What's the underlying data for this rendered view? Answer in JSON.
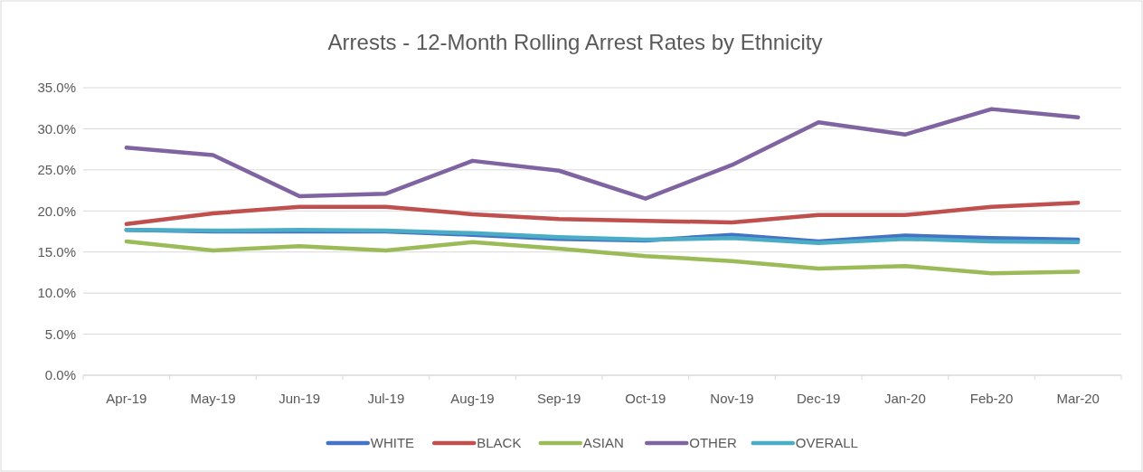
{
  "chart_data": {
    "type": "line",
    "title": "Arrests - 12-Month Rolling Arrest Rates by Ethnicity",
    "categories": [
      "Apr-19",
      "May-19",
      "Jun-19",
      "Jul-19",
      "Aug-19",
      "Sep-19",
      "Oct-19",
      "Nov-19",
      "Dec-19",
      "Jan-20",
      "Feb-20",
      "Mar-20"
    ],
    "series": [
      {
        "name": "WHITE",
        "color": "#4472c4",
        "values": [
          17.7,
          17.5,
          17.5,
          17.5,
          17.1,
          16.6,
          16.4,
          17.1,
          16.3,
          17.0,
          16.7,
          16.5
        ]
      },
      {
        "name": "BLACK",
        "color": "#c0504d",
        "values": [
          18.4,
          19.7,
          20.5,
          20.5,
          19.6,
          19.0,
          18.8,
          18.6,
          19.5,
          19.5,
          20.5,
          21.0
        ]
      },
      {
        "name": "ASIAN",
        "color": "#9bbb59",
        "values": [
          16.3,
          15.2,
          15.7,
          15.2,
          16.2,
          15.4,
          14.5,
          13.9,
          13.0,
          13.3,
          12.4,
          12.6
        ]
      },
      {
        "name": "OTHER",
        "color": "#8064a2",
        "values": [
          27.7,
          26.8,
          21.8,
          22.1,
          26.1,
          24.9,
          21.5,
          25.6,
          30.8,
          29.3,
          32.4,
          31.4
        ]
      },
      {
        "name": "OVERALL",
        "color": "#4bacc6",
        "values": [
          17.7,
          17.6,
          17.7,
          17.6,
          17.3,
          16.8,
          16.5,
          16.7,
          16.1,
          16.6,
          16.3,
          16.2
        ]
      }
    ],
    "ylim": [
      0,
      35
    ],
    "yticks": [
      {
        "value": 0,
        "label": "0.0%"
      },
      {
        "value": 5,
        "label": "5.0%"
      },
      {
        "value": 10,
        "label": "10.0%"
      },
      {
        "value": 15,
        "label": "15.0%"
      },
      {
        "value": 20,
        "label": "20.0%"
      },
      {
        "value": 25,
        "label": "25.0%"
      },
      {
        "value": 30,
        "label": "30.0%"
      },
      {
        "value": 35,
        "label": "35.0%"
      }
    ],
    "grid": "y",
    "legend": "bottom",
    "line_style": "solid"
  }
}
